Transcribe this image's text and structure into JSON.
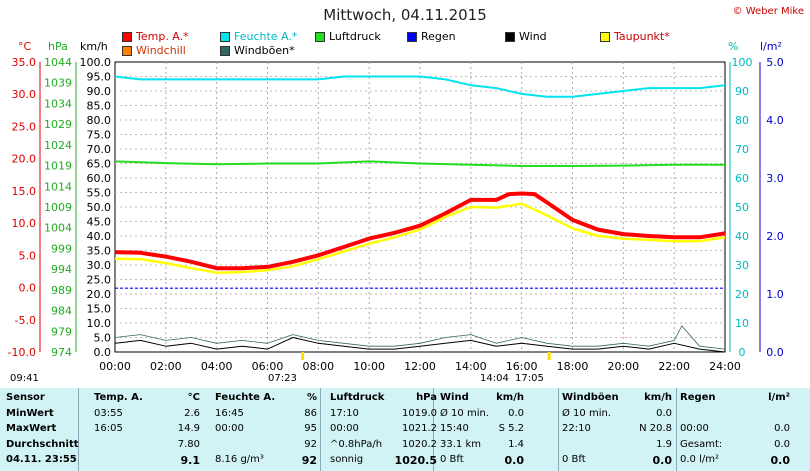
{
  "title": "Mittwoch, 04.11.2015",
  "copyright": "© Weber Mike",
  "legend": [
    {
      "label": "Temp. A.*",
      "color": "#ff0000"
    },
    {
      "label": "Feuchte A.*",
      "color": "#00e5ee"
    },
    {
      "label": "Luftdruck",
      "color": "#22dd22"
    },
    {
      "label": "Regen",
      "color": "#0000ff"
    },
    {
      "label": "Wind",
      "color": "#000000"
    },
    {
      "label": "Taupunkt*",
      "color": "#ffff00"
    },
    {
      "label": "Windchill",
      "color": "#ff7f00"
    },
    {
      "label": "Windböen*",
      "color": "#336666"
    }
  ],
  "units": {
    "temp": "°C",
    "press": "hPa",
    "wind": "km/h",
    "hum": "%",
    "rain": "l/m²"
  },
  "sun_times": {
    "sunrise": "07:23",
    "sunset": "17:05",
    "left": "09:41",
    "mid": "14:04"
  },
  "chart_data": {
    "type": "line",
    "x_ticks": [
      "00:00",
      "02:00",
      "04:00",
      "06:00",
      "08:00",
      "10:00",
      "12:00",
      "14:00",
      "16:00",
      "18:00",
      "20:00",
      "22:00",
      "24:00"
    ],
    "axes": {
      "temp": {
        "label": "°C",
        "range": [
          -10,
          35
        ],
        "ticks": [
          "35.0",
          "30.0",
          "25.0",
          "20.0",
          "15.0",
          "10.0",
          "5.0",
          "0.0",
          "-5.0",
          "-10.0"
        ]
      },
      "press": {
        "label": "hPa",
        "range": [
          974,
          1044
        ],
        "ticks": [
          "1044",
          "1039",
          "1034",
          "1029",
          "1024",
          "1019",
          "1014",
          "1009",
          "1004",
          "999",
          "994",
          "989",
          "984",
          "979",
          "974"
        ]
      },
      "wind": {
        "label": "km/h",
        "range": [
          0,
          100
        ],
        "ticks": [
          "100.0",
          "95.0",
          "90.0",
          "85.0",
          "80.0",
          "75.0",
          "70.0",
          "65.0",
          "60.0",
          "55.0",
          "50.0",
          "45.0",
          "40.0",
          "35.0",
          "30.0",
          "25.0",
          "20.0",
          "15.0",
          "10.0",
          "5.0",
          "0.0"
        ]
      },
      "hum": {
        "label": "%",
        "range": [
          0,
          100
        ],
        "ticks": [
          "100",
          "90",
          "80",
          "70",
          "60",
          "50",
          "40",
          "30",
          "20",
          "10",
          "0"
        ]
      },
      "rain": {
        "label": "l/m²",
        "range": [
          0,
          5
        ],
        "ticks": [
          "5.0",
          "4.0",
          "3.0",
          "2.0",
          "1.0",
          "0.0"
        ]
      }
    },
    "series": [
      {
        "name": "Temp. A.*",
        "color": "#ff0000",
        "axis": "temp",
        "x": [
          0,
          1,
          2,
          3,
          4,
          5,
          6,
          7,
          8,
          9,
          10,
          11,
          12,
          13,
          14,
          14.5,
          15,
          15.5,
          16,
          16.5,
          17,
          18,
          19,
          20,
          21,
          22,
          23,
          24
        ],
        "values": [
          5.5,
          5.4,
          4.8,
          4.0,
          3.0,
          3.0,
          3.2,
          4.0,
          5.0,
          6.3,
          7.6,
          8.5,
          9.6,
          11.5,
          13.6,
          13.6,
          13.6,
          14.5,
          14.6,
          14.5,
          13.2,
          10.5,
          9.0,
          8.3,
          8.0,
          7.8,
          7.8,
          8.4
        ]
      },
      {
        "name": "Taupunkt*",
        "color": "#ffff00",
        "axis": "temp",
        "x": [
          0,
          1,
          2,
          3,
          4,
          5,
          6,
          7,
          8,
          9,
          10,
          11,
          12,
          13,
          14,
          15,
          16,
          17,
          18,
          19,
          20,
          21,
          22,
          23,
          24
        ],
        "values": [
          4.5,
          4.4,
          3.8,
          3.0,
          2.3,
          2.4,
          2.7,
          3.3,
          4.4,
          5.6,
          6.8,
          7.8,
          9.0,
          11.0,
          12.5,
          12.4,
          13.0,
          11.2,
          9.2,
          8.0,
          7.6,
          7.4,
          7.2,
          7.2,
          7.8
        ]
      },
      {
        "name": "Feuchte A.*",
        "color": "#00e5ee",
        "axis": "hum",
        "x": [
          0,
          1,
          2,
          4,
          6,
          8,
          9,
          10,
          12,
          13,
          14,
          15,
          16,
          17,
          18,
          19,
          20,
          21,
          22,
          23,
          24
        ],
        "values": [
          95,
          94,
          94,
          94,
          94,
          94,
          95,
          95,
          95,
          94,
          92,
          91,
          89,
          88,
          88,
          89,
          90,
          91,
          91,
          91,
          92
        ]
      },
      {
        "name": "Luftdruck",
        "color": "#22dd22",
        "axis": "press",
        "x": [
          0,
          2,
          4,
          6,
          8,
          10,
          12,
          14,
          16,
          18,
          20,
          22,
          24
        ],
        "values": [
          1020.0,
          1019.6,
          1019.3,
          1019.5,
          1019.5,
          1020.0,
          1019.5,
          1019.2,
          1018.9,
          1018.9,
          1019.0,
          1019.2,
          1019.2
        ]
      },
      {
        "name": "Wind",
        "color": "#000000",
        "axis": "wind",
        "x": [
          0,
          1,
          2,
          3,
          4,
          5,
          6,
          6.5,
          7,
          8,
          9,
          10,
          11,
          12,
          13,
          14,
          15,
          16,
          17,
          18,
          19,
          20,
          21,
          22,
          23,
          24
        ],
        "values": [
          3,
          4,
          2,
          3,
          1,
          2,
          1,
          3,
          5,
          3,
          2,
          1,
          1,
          2,
          3,
          4,
          2,
          3,
          2,
          1,
          1,
          2,
          1,
          3,
          1,
          0
        ]
      },
      {
        "name": "Windböen*",
        "color": "#336666",
        "axis": "wind",
        "x": [
          0,
          1,
          2,
          3,
          4,
          5,
          6,
          7,
          8,
          9,
          10,
          11,
          12,
          13,
          14,
          15,
          16,
          17,
          18,
          19,
          20,
          21,
          22,
          22.3,
          23,
          24
        ],
        "values": [
          5,
          6,
          4,
          5,
          3,
          4,
          3,
          6,
          4,
          3,
          2,
          2,
          3,
          5,
          6,
          3,
          5,
          3,
          2,
          2,
          3,
          2,
          4,
          9,
          2,
          1
        ]
      }
    ],
    "rain_line": {
      "name": "Regen",
      "color": "#0000ff",
      "axis": "rain",
      "value": 1.1
    }
  },
  "table": {
    "header": [
      "Sensor",
      "Temp. A.",
      "°C",
      "Feuchte A.",
      "%",
      "Luftdruck",
      "hPa",
      "Wind",
      "km/h",
      "Windböen",
      "km/h",
      "Regen",
      "l/m²"
    ],
    "rows": [
      [
        "MinWert",
        "03:55",
        "2.6",
        "16:45",
        "86",
        "17:10",
        "1019.0",
        "Ø 10 min.",
        "0.0",
        "Ø 10 min.",
        "0.0",
        "",
        ""
      ],
      [
        "MaxWert",
        "16:05",
        "14.9",
        "00:00",
        "95",
        "00:00",
        "1021.2",
        "15:40",
        "S 5.2",
        "22:10",
        "N 20.8",
        "00:00",
        "0.0"
      ],
      [
        "Durchschnitt",
        "",
        "7.80",
        "",
        "92",
        "^0.8hPa/h",
        "1020.2",
        "33.1 km",
        "1.4",
        "",
        "1.9",
        "Gesamt:",
        "0.0"
      ],
      [
        "04.11. 23:55",
        "",
        "9.1",
        "8.16 g/m³",
        "92",
        "sonnig",
        "1020.5",
        "0 Bft",
        "0.0",
        "0 Bft",
        "0.0",
        "0.0 l/m²",
        "0.0"
      ]
    ]
  }
}
